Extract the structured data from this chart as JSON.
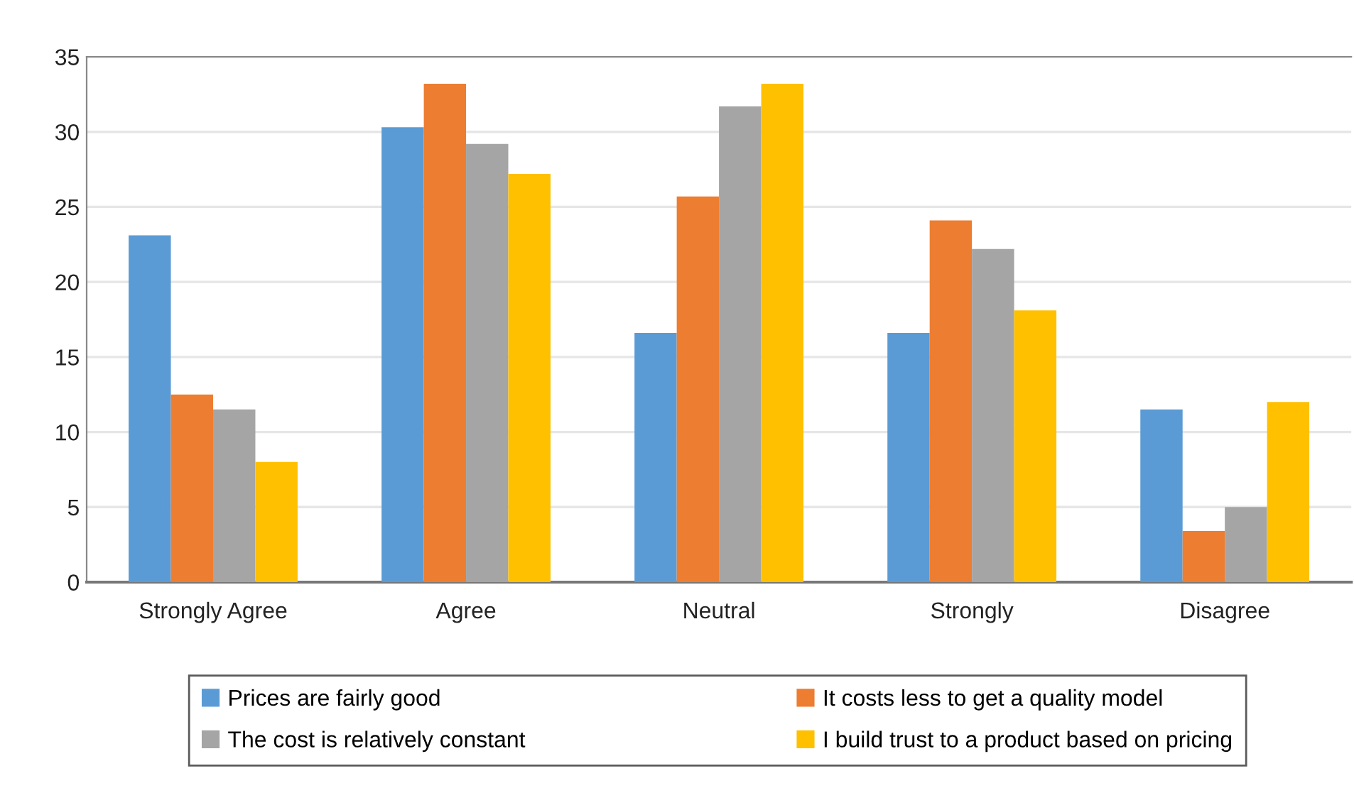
{
  "chart_data": {
    "type": "bar",
    "categories": [
      "Strongly Agree",
      "Agree",
      "Neutral",
      "Strongly",
      "Disagree"
    ],
    "series": [
      {
        "name": "Prices are fairly good",
        "color": "#5b9bd5",
        "values": [
          23.1,
          30.3,
          16.6,
          16.6,
          11.5
        ]
      },
      {
        "name": "It costs less to get a quality model",
        "color": "#ed7d31",
        "values": [
          12.5,
          33.2,
          25.7,
          24.1,
          3.4
        ]
      },
      {
        "name": "The cost is relatively constant",
        "color": "#a5a5a5",
        "values": [
          11.5,
          29.2,
          31.7,
          22.2,
          5.0
        ]
      },
      {
        "name": "I build trust to a product based on pricing",
        "color": "#ffc000",
        "values": [
          8.0,
          27.2,
          33.2,
          18.1,
          12.0
        ]
      }
    ],
    "ylim": [
      0,
      35
    ],
    "yticks": [
      0,
      5,
      10,
      15,
      20,
      25,
      30,
      35
    ],
    "grid": "y",
    "legend": "bottom"
  }
}
